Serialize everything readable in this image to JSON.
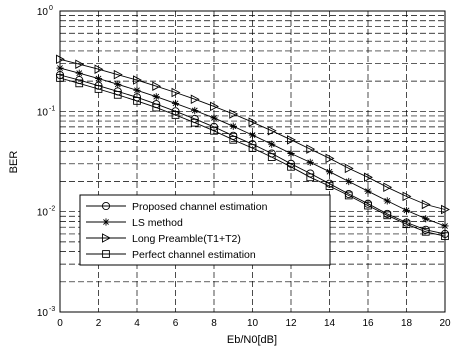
{
  "chart_data": {
    "type": "line",
    "title": "",
    "xlabel": "Eb/N0[dB]",
    "ylabel": "BER",
    "yscale": "log",
    "xlim": [
      0,
      20
    ],
    "ylim": [
      0.001,
      1
    ],
    "grid": true,
    "legend_position": "lower-left",
    "x": [
      0,
      1,
      2,
      3,
      4,
      5,
      6,
      7,
      8,
      9,
      10,
      11,
      12,
      13,
      14,
      15,
      16,
      17,
      18,
      19,
      20
    ],
    "x_ticks": [
      "0",
      "2",
      "4",
      "6",
      "8",
      "10",
      "12",
      "14",
      "16",
      "18",
      "20"
    ],
    "y_ticks": [
      {
        "base": "10",
        "exp": "0"
      },
      {
        "base": "10",
        "exp": "-1"
      },
      {
        "base": "10",
        "exp": "-2"
      },
      {
        "base": "10",
        "exp": "-3"
      }
    ],
    "series": [
      {
        "name": "Proposed channel estimation",
        "marker": "circle",
        "values": [
          0.23,
          0.205,
          0.18,
          0.158,
          0.138,
          0.118,
          0.1,
          0.084,
          0.07,
          0.057,
          0.047,
          0.038,
          0.03,
          0.024,
          0.019,
          0.015,
          0.012,
          0.0095,
          0.0078,
          0.0066,
          0.006
        ]
      },
      {
        "name": "LS method",
        "marker": "star",
        "values": [
          0.27,
          0.24,
          0.212,
          0.186,
          0.162,
          0.14,
          0.12,
          0.102,
          0.086,
          0.071,
          0.058,
          0.047,
          0.038,
          0.031,
          0.025,
          0.02,
          0.016,
          0.0128,
          0.0103,
          0.0085,
          0.0072
        ]
      },
      {
        "name": "Long Preamble(T1+T2)",
        "marker": "triangle-right",
        "values": [
          0.33,
          0.295,
          0.263,
          0.232,
          0.205,
          0.178,
          0.154,
          0.132,
          0.112,
          0.094,
          0.078,
          0.064,
          0.052,
          0.042,
          0.034,
          0.027,
          0.022,
          0.0175,
          0.0142,
          0.0118,
          0.0105
        ]
      },
      {
        "name": "Perfect channel estimation",
        "marker": "square",
        "values": [
          0.215,
          0.19,
          0.167,
          0.146,
          0.127,
          0.109,
          0.092,
          0.077,
          0.064,
          0.052,
          0.043,
          0.035,
          0.028,
          0.022,
          0.018,
          0.0145,
          0.0115,
          0.0092,
          0.0075,
          0.0063,
          0.0057
        ]
      }
    ]
  }
}
